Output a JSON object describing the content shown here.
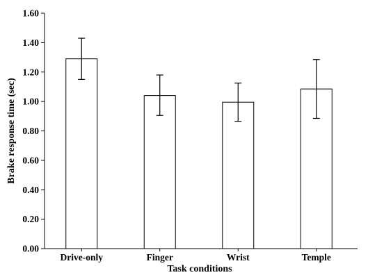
{
  "chart_data": {
    "type": "bar",
    "title": "",
    "xlabel": "Task conditions",
    "ylabel": "Brake response time (sec)",
    "categories": [
      "Drive-only",
      "Finger",
      "Wrist",
      "Temple"
    ],
    "values": [
      1.29,
      1.04,
      0.995,
      1.085
    ],
    "error_bars": {
      "upper": [
        1.43,
        1.18,
        1.125,
        1.285
      ],
      "lower": [
        1.15,
        0.905,
        0.865,
        0.885
      ]
    },
    "ylim": [
      0,
      1.6
    ],
    "yticks": [
      "0.00",
      "0.20",
      "0.40",
      "0.60",
      "0.80",
      "1.00",
      "1.20",
      "1.40",
      "1.60"
    ],
    "grid": false,
    "legend": "none",
    "colors": {
      "bar_fill": "#ffffff",
      "bar_edge": "#000000",
      "axis": "#000000"
    }
  }
}
